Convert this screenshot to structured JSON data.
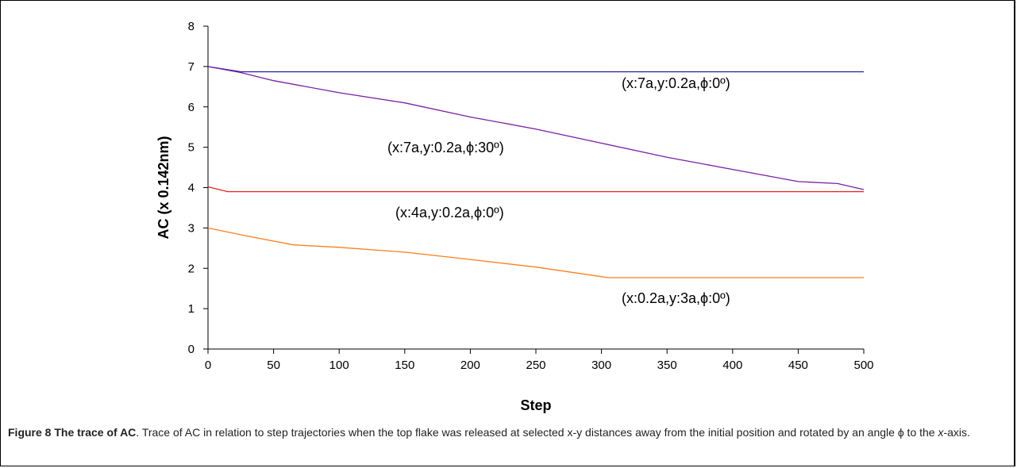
{
  "chart_data": {
    "type": "line",
    "title": "",
    "xlabel": "Step",
    "ylabel": "AC (x 0.142nm)",
    "xlim": [
      0,
      500
    ],
    "ylim": [
      0,
      8
    ],
    "xticks": [
      0,
      50,
      100,
      150,
      200,
      250,
      300,
      350,
      400,
      450,
      500
    ],
    "yticks": [
      0,
      1,
      2,
      3,
      4,
      5,
      6,
      7,
      8
    ],
    "grid": false,
    "legend": "none",
    "series": [
      {
        "label": "(x:7a,y:0.2a,ϕ:0º)",
        "color": "#1f1f9e",
        "x": [
          0,
          25,
          500
        ],
        "y": [
          7.0,
          6.87,
          6.87
        ]
      },
      {
        "label": "(x:7a,y:0.2a,ϕ:30º)",
        "color": "#7b1fa2",
        "x": [
          0,
          25,
          50,
          100,
          150,
          200,
          250,
          300,
          350,
          400,
          450,
          480,
          500
        ],
        "y": [
          7.0,
          6.85,
          6.65,
          6.35,
          6.1,
          5.75,
          5.45,
          5.1,
          4.75,
          4.45,
          4.15,
          4.1,
          3.95
        ]
      },
      {
        "label": "(x:4a,y:0.2a,ϕ:0º)",
        "color": "#e8231b",
        "x": [
          0,
          15,
          500
        ],
        "y": [
          4.02,
          3.9,
          3.9
        ]
      },
      {
        "label": "(x:0.2a,y:3a,ϕ:0º)",
        "color": "#ff7f1a",
        "x": [
          0,
          30,
          65,
          100,
          150,
          200,
          250,
          305,
          500
        ],
        "y": [
          3.0,
          2.8,
          2.58,
          2.52,
          2.4,
          2.22,
          2.03,
          1.77,
          1.77
        ]
      }
    ]
  },
  "caption": {
    "figure": "Figure 8 The trace of AC",
    "text": ". Trace of AC in relation to step trajectories when the top flake was released at selected x-y distances away from the initial position and rotated by an angle ϕ to the ",
    "italic": "x",
    "tail": "-axis."
  }
}
